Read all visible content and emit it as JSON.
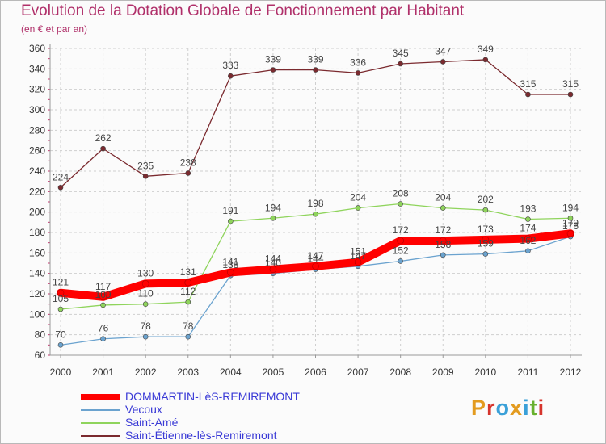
{
  "title": "Evolution de la Dotation Globale de Fonctionnement par Habitant",
  "subtitle": "(en € et par an)",
  "logo_text": "Proxiti",
  "logo_colors": [
    "#e39b1f",
    "#d6342c",
    "#3aa0d8",
    "#e39b1f",
    "#3aa0d8",
    "#68b12e",
    "#d6342c"
  ],
  "chart_data": {
    "type": "line",
    "title": "Evolution de la Dotation Globale de Fonctionnement par Habitant",
    "xlabel": "",
    "ylabel": "(en € et par an)",
    "ylim": [
      60,
      360
    ],
    "yticks": [
      60,
      80,
      100,
      120,
      140,
      160,
      180,
      200,
      220,
      240,
      260,
      280,
      300,
      320,
      340,
      360
    ],
    "grid": true,
    "categories": [
      "2000",
      "2001",
      "2002",
      "2003",
      "2004",
      "2005",
      "2006",
      "2007",
      "2008",
      "2009",
      "2010",
      "2011",
      "2012"
    ],
    "series": [
      {
        "name": "Saint-Étienne-lès-Remiremont",
        "color": "#7b2a2f",
        "values": [
          224,
          262,
          235,
          238,
          333,
          339,
          339,
          336,
          345,
          347,
          349,
          315,
          315
        ]
      },
      {
        "name": "Saint-Amé",
        "color": "#8fd45c",
        "values": [
          105,
          109,
          110,
          112,
          191,
          194,
          198,
          204,
          208,
          204,
          202,
          193,
          194
        ]
      },
      {
        "name": "Vecoux",
        "color": "#6ba3cf",
        "values": [
          70,
          76,
          78,
          78,
          138,
          140,
          144,
          147,
          152,
          158,
          159,
          162,
          176
        ]
      },
      {
        "name": "DOMMARTIN-LèS-REMIREMONT",
        "color": "#ff0000",
        "values": [
          121,
          117,
          130,
          131,
          141,
          144,
          147,
          151,
          172,
          172,
          173,
          174,
          179
        ]
      }
    ]
  }
}
